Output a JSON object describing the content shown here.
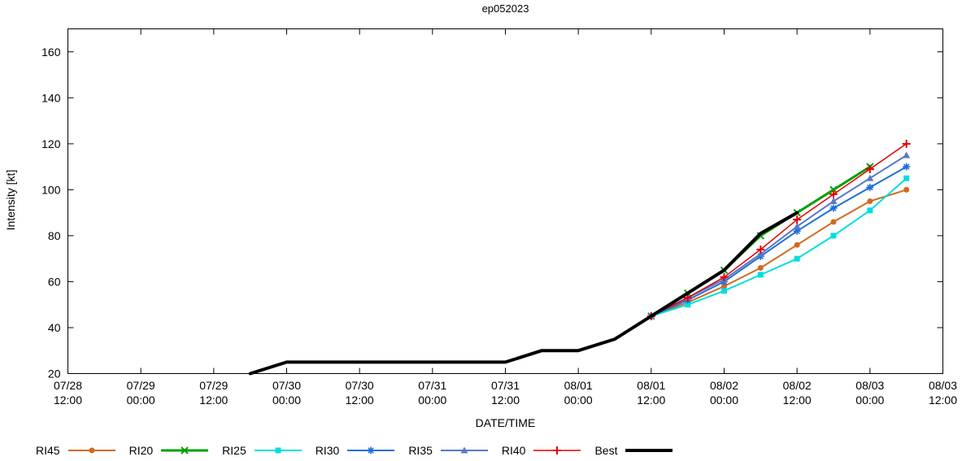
{
  "page": {
    "title": "ep052023"
  },
  "chart_data": {
    "type": "line",
    "title": "ep052023",
    "xlabel": "DATE/TIME",
    "ylabel": "Intensity [kt]",
    "x_unit": "hours from 07/28 12:00",
    "xlim_hours": [
      0,
      144
    ],
    "ylim": [
      20,
      170
    ],
    "grid": false,
    "legend_position": "bottom",
    "yticks": [
      20,
      40,
      60,
      80,
      100,
      120,
      140,
      160
    ],
    "xticks": [
      {
        "hour": 0,
        "date": "07/28",
        "time": "12:00"
      },
      {
        "hour": 12,
        "date": "07/29",
        "time": "00:00"
      },
      {
        "hour": 24,
        "date": "07/29",
        "time": "12:00"
      },
      {
        "hour": 36,
        "date": "07/30",
        "time": "00:00"
      },
      {
        "hour": 48,
        "date": "07/30",
        "time": "12:00"
      },
      {
        "hour": 60,
        "date": "07/31",
        "time": "00:00"
      },
      {
        "hour": 72,
        "date": "07/31",
        "time": "12:00"
      },
      {
        "hour": 84,
        "date": "08/01",
        "time": "00:00"
      },
      {
        "hour": 96,
        "date": "08/01",
        "time": "12:00"
      },
      {
        "hour": 108,
        "date": "08/02",
        "time": "00:00"
      },
      {
        "hour": 120,
        "date": "08/02",
        "time": "12:00"
      },
      {
        "hour": 132,
        "date": "08/03",
        "time": "00:00"
      },
      {
        "hour": 144,
        "date": "08/03",
        "time": "12:00"
      }
    ],
    "series": [
      {
        "name": "RI45",
        "color": "#d2691e",
        "width": 2,
        "marker": "circle",
        "points": [
          [
            96,
            45
          ],
          [
            102,
            51
          ],
          [
            108,
            58
          ],
          [
            114,
            66
          ],
          [
            120,
            76
          ],
          [
            126,
            86
          ],
          [
            132,
            95
          ],
          [
            138,
            100
          ]
        ]
      },
      {
        "name": "RI20",
        "color": "#00a000",
        "width": 3,
        "marker": "x",
        "points": [
          [
            96,
            45
          ],
          [
            102,
            55
          ],
          [
            108,
            65
          ],
          [
            114,
            80
          ],
          [
            120,
            90
          ],
          [
            126,
            100
          ],
          [
            132,
            110
          ]
        ]
      },
      {
        "name": "RI25",
        "color": "#00dede",
        "width": 2,
        "marker": "square",
        "points": [
          [
            96,
            45
          ],
          [
            102,
            50
          ],
          [
            108,
            56
          ],
          [
            114,
            63
          ],
          [
            120,
            70
          ],
          [
            126,
            80
          ],
          [
            132,
            91
          ],
          [
            138,
            105
          ]
        ]
      },
      {
        "name": "RI30",
        "color": "#1e6fd9",
        "width": 2,
        "marker": "asterisk",
        "points": [
          [
            96,
            45
          ],
          [
            102,
            52
          ],
          [
            108,
            60
          ],
          [
            114,
            71
          ],
          [
            120,
            82
          ],
          [
            126,
            92
          ],
          [
            132,
            101
          ],
          [
            138,
            110
          ]
        ]
      },
      {
        "name": "RI35",
        "color": "#5a78c8",
        "width": 2,
        "marker": "triangle",
        "points": [
          [
            96,
            45
          ],
          [
            102,
            53
          ],
          [
            108,
            61
          ],
          [
            114,
            72
          ],
          [
            120,
            84
          ],
          [
            126,
            95
          ],
          [
            132,
            105
          ],
          [
            138,
            115
          ]
        ]
      },
      {
        "name": "RI40",
        "color": "#e60000",
        "width": 1.5,
        "marker": "plus",
        "points": [
          [
            96,
            45
          ],
          [
            102,
            53
          ],
          [
            108,
            62
          ],
          [
            114,
            74
          ],
          [
            120,
            87
          ],
          [
            126,
            98
          ],
          [
            132,
            109
          ],
          [
            138,
            120
          ]
        ]
      },
      {
        "name": "Best",
        "color": "#000000",
        "width": 4,
        "marker": "none",
        "points": [
          [
            30,
            20
          ],
          [
            36,
            25
          ],
          [
            72,
            25
          ],
          [
            78,
            30
          ],
          [
            84,
            30
          ],
          [
            90,
            35
          ],
          [
            96,
            45
          ],
          [
            102,
            55
          ],
          [
            108,
            65
          ],
          [
            114,
            81
          ],
          [
            120,
            90
          ]
        ]
      }
    ]
  }
}
